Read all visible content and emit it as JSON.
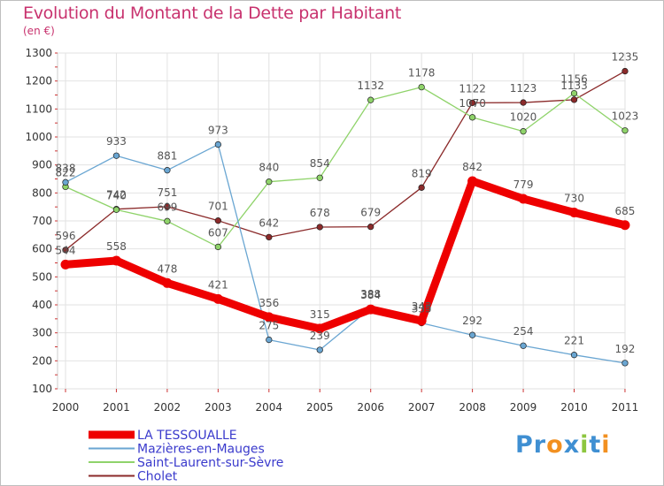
{
  "header": {
    "title": "Evolution du Montant de la Dette par Habitant",
    "subtitle": "(en €)"
  },
  "logo": {
    "letters": [
      "P",
      "r",
      "o",
      "x",
      "i",
      "t",
      "i"
    ],
    "colors": [
      "#3f8fd2",
      "#3f8fd2",
      "#f29020",
      "#3f8fd2",
      "#8dc63f",
      "#3f8fd2",
      "#f29020"
    ]
  },
  "chart_data": {
    "type": "line",
    "x": [
      "2000",
      "2001",
      "2002",
      "2003",
      "2004",
      "2005",
      "2006",
      "2007",
      "2008",
      "2009",
      "2010",
      "2011"
    ],
    "ylim": [
      100,
      1300
    ],
    "yticks": [
      "100",
      "200",
      "300",
      "400",
      "500",
      "600",
      "700",
      "800",
      "900",
      "1000",
      "1100",
      "1200",
      "1300"
    ],
    "grid": true,
    "legend_position": "bottom-left",
    "series": [
      {
        "name": "LA TESSOUALLE",
        "color": "#ee0000",
        "values": [
          544,
          558,
          478,
          421,
          356,
          315,
          384,
          343,
          842,
          779,
          730,
          685
        ],
        "labels": [
          "544",
          "558",
          "478",
          "421",
          "356",
          "315",
          "384",
          "343",
          "842",
          "779",
          "730",
          "685"
        ]
      },
      {
        "name": "Mazières-en-Mauges",
        "color": "#6aa6d2",
        "values": [
          838,
          933,
          881,
          973,
          275,
          239,
          388,
          335,
          292,
          254,
          221,
          192
        ],
        "labels": [
          "838",
          "933",
          "881",
          "973",
          "275",
          "239",
          "388",
          "335",
          "292",
          "254",
          "221",
          "192"
        ]
      },
      {
        "name": "Saint-Laurent-sur-Sèvre",
        "color": "#8fd36a",
        "values": [
          822,
          740,
          699,
          607,
          840,
          854,
          1132,
          1178,
          1070,
          1020,
          1156,
          1023
        ],
        "labels": [
          "822",
          "740",
          "699",
          "607",
          "840",
          "854",
          "1132",
          "1178",
          "1070",
          "1020",
          "1156",
          "1023"
        ]
      },
      {
        "name": "Cholet",
        "color": "#8b2a2a",
        "values": [
          596,
          742,
          751,
          701,
          642,
          678,
          679,
          819,
          1122,
          1123,
          1133,
          1235
        ],
        "labels": [
          "596",
          "742",
          "751",
          "701",
          "642",
          "678",
          "679",
          "819",
          "1122",
          "1123",
          "1133",
          "1235"
        ]
      }
    ]
  }
}
